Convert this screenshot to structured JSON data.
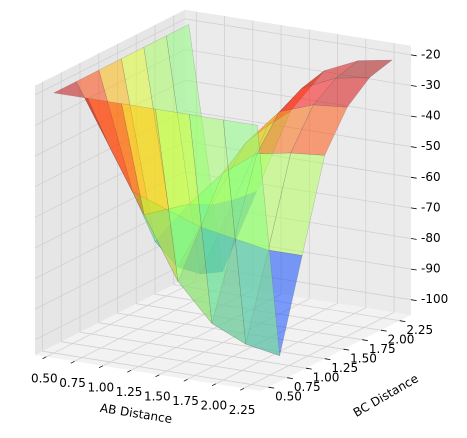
{
  "chart_data": {
    "type": "surface3d",
    "xlabel": "AB Distance",
    "ylabel": "BC Distance",
    "x": [
      0.5,
      0.8,
      1.1,
      1.4,
      1.7,
      2.0,
      2.3
    ],
    "y": [
      0.5,
      0.8,
      1.1,
      1.4,
      1.7,
      2.0,
      2.3
    ],
    "z": [
      [
        -20,
        -20,
        -20,
        -20,
        -20,
        -20,
        -20
      ],
      [
        -20,
        -40,
        -60,
        -80,
        -92,
        -97,
        -99
      ],
      [
        -20,
        -58,
        -62,
        -66,
        -68,
        -70,
        -70
      ],
      [
        -20,
        -78,
        -64,
        -52,
        -44,
        -42,
        -41
      ],
      [
        -20,
        -90,
        -68,
        -46,
        -34,
        -30,
        -29
      ],
      [
        -20,
        -96,
        -70,
        -44,
        -30,
        -25,
        -23
      ],
      [
        -20,
        -99,
        -71,
        -43,
        -28,
        -23,
        -21
      ]
    ],
    "xlim": [
      0.4,
      2.4
    ],
    "ylim": [
      0.4,
      2.4
    ],
    "zlim": [
      -105,
      -17
    ],
    "xticks": [
      {
        "value": 0.5,
        "label": "0.50"
      },
      {
        "value": 0.75,
        "label": "0.75"
      },
      {
        "value": 1.0,
        "label": "1.00"
      },
      {
        "value": 1.25,
        "label": "1.25"
      },
      {
        "value": 1.5,
        "label": "1.50"
      },
      {
        "value": 1.75,
        "label": "1.75"
      },
      {
        "value": 2.0,
        "label": "2.00"
      },
      {
        "value": 2.25,
        "label": "2.25"
      }
    ],
    "yticks": [
      {
        "value": 0.5,
        "label": "0.50"
      },
      {
        "value": 0.75,
        "label": "0.75"
      },
      {
        "value": 1.0,
        "label": "1.00"
      },
      {
        "value": 1.25,
        "label": "1.25"
      },
      {
        "value": 1.5,
        "label": "1.50"
      },
      {
        "value": 1.75,
        "label": "1.75"
      },
      {
        "value": 2.0,
        "label": "2.00"
      },
      {
        "value": 2.25,
        "label": "2.25"
      }
    ],
    "zticks": [
      -20,
      -30,
      -40,
      -50,
      -60,
      -70,
      -80,
      -90,
      -100
    ],
    "colormap": "jet",
    "grid": true
  }
}
